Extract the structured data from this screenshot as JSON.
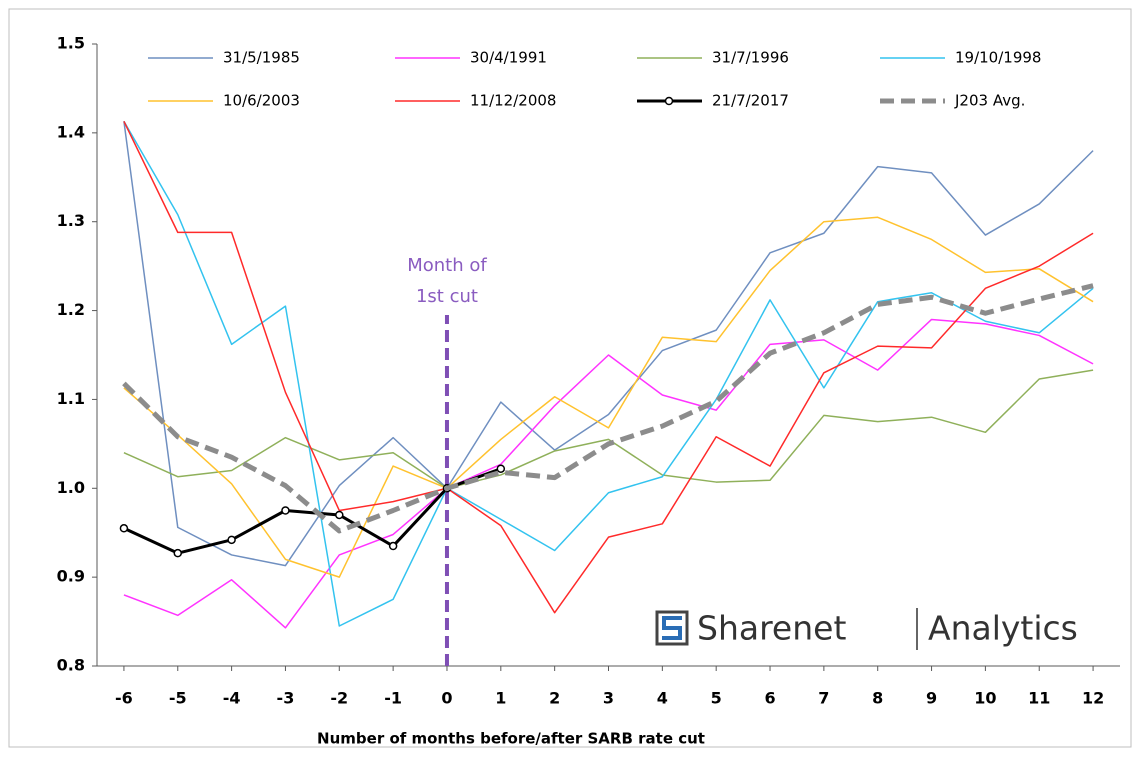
{
  "chart_data": {
    "type": "line",
    "x": [
      -6,
      -5,
      -4,
      -3,
      -2,
      -1,
      0,
      1,
      2,
      3,
      4,
      5,
      6,
      7,
      8,
      9,
      10,
      11,
      12
    ],
    "xlim": [
      -6.5,
      12.5
    ],
    "xticks": [
      -6,
      -5,
      -4,
      -3,
      -2,
      -1,
      0,
      1,
      2,
      3,
      4,
      5,
      6,
      7,
      8,
      9,
      10,
      11,
      12
    ],
    "ylim": [
      0.8,
      1.5
    ],
    "yticks": [
      0.8,
      0.9,
      {
        "value": 1,
        "label": "1.0"
      },
      1.1,
      1.2,
      1.3,
      1.4,
      1.5
    ],
    "xlabel": "Number of months before/after SARB  rate cut",
    "annotation": {
      "lines": [
        "Month of",
        "1st cut"
      ],
      "x": 0,
      "color": "#8a5cc0"
    },
    "watermark": [
      "Sharenet",
      "Analytics"
    ],
    "series": [
      {
        "name": "31/5/1985",
        "color": "#6f8fc0",
        "width": 1.5,
        "values": [
          1.413,
          0.956,
          0.925,
          0.913,
          1.003,
          1.057,
          1.0,
          1.097,
          1.043,
          1.083,
          1.155,
          1.178,
          1.265,
          1.287,
          1.362,
          1.355,
          1.285,
          1.32,
          1.38
        ]
      },
      {
        "name": "30/4/1991",
        "color": "#ff33ff",
        "width": 1.5,
        "values": [
          0.88,
          0.857,
          0.897,
          0.843,
          0.925,
          0.948,
          1.0,
          1.027,
          1.093,
          1.15,
          1.105,
          1.088,
          1.162,
          1.167,
          1.133,
          1.19,
          1.185,
          1.172,
          1.14
        ]
      },
      {
        "name": "31/7/1996",
        "color": "#8fb05a",
        "width": 1.5,
        "values": [
          1.04,
          1.013,
          1.02,
          1.057,
          1.032,
          1.04,
          1.0,
          1.015,
          1.042,
          1.055,
          1.015,
          1.007,
          1.009,
          1.082,
          1.075,
          1.08,
          1.063,
          1.123,
          1.133
        ]
      },
      {
        "name": "19/10/1998",
        "color": "#33c3ef",
        "width": 1.5,
        "values": [
          1.413,
          1.308,
          1.162,
          1.205,
          0.845,
          0.875,
          1.0,
          0.965,
          0.93,
          0.995,
          1.013,
          1.1,
          1.212,
          1.113,
          1.21,
          1.22,
          1.188,
          1.175,
          1.225
        ]
      },
      {
        "name": "10/6/2003",
        "color": "#ffc22e",
        "width": 1.5,
        "values": [
          1.113,
          1.06,
          1.005,
          0.92,
          0.9,
          1.025,
          1.0,
          1.055,
          1.103,
          1.068,
          1.17,
          1.165,
          1.245,
          1.3,
          1.305,
          1.28,
          1.243,
          1.247,
          1.21
        ]
      },
      {
        "name": "11/12/2008",
        "color": "#ff2a2a",
        "width": 1.5,
        "values": [
          1.413,
          1.288,
          1.288,
          1.108,
          0.975,
          0.985,
          1.0,
          0.958,
          0.86,
          0.945,
          0.96,
          1.058,
          1.025,
          1.13,
          1.16,
          1.158,
          1.225,
          1.25,
          1.287
        ]
      },
      {
        "name": "21/7/2017",
        "color": "#000000",
        "width": 3,
        "markers": true,
        "values": [
          0.955,
          0.927,
          0.942,
          0.975,
          0.97,
          0.935,
          1.0,
          1.022,
          null,
          null,
          null,
          null,
          null,
          null,
          null,
          null,
          null,
          null,
          null
        ]
      },
      {
        "name": "J203 Avg.",
        "color": "#8c8c8c",
        "width": 5,
        "dash": true,
        "values": [
          1.118,
          1.058,
          1.035,
          1.003,
          0.952,
          0.975,
          1.0,
          1.018,
          1.012,
          1.05,
          1.07,
          1.098,
          1.152,
          1.175,
          1.207,
          1.215,
          1.197,
          1.213,
          1.228
        ]
      }
    ]
  }
}
